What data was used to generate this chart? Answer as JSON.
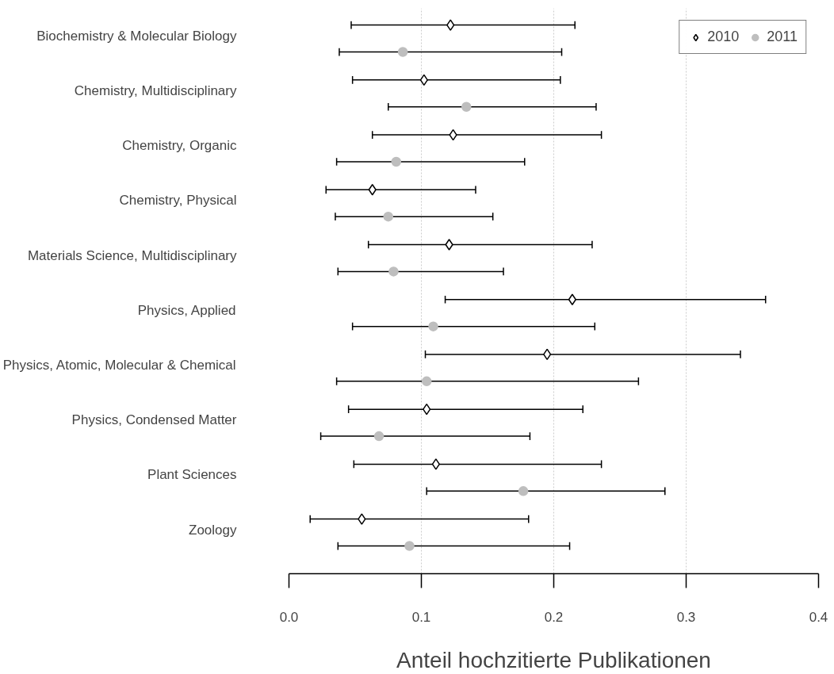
{
  "chart_data": {
    "type": "scatter",
    "orientation": "horizontal",
    "xlabel": "Anteil hochzitierte Publikationen",
    "categories": [
      "Biochemistry & Molecular Biology",
      "Chemistry, Multidisciplinary",
      "Chemistry, Organic",
      "Chemistry, Physical",
      "Materials Science, Multidisciplinary",
      "Physics, Applied",
      "Physics, Atomic, Molecular & Chemical",
      "Physics, Condensed Matter",
      "Plant Sciences",
      "Zoology"
    ],
    "xlim": [
      0,
      0.4
    ],
    "xticks": [
      {
        "value": 0,
        "label": "0.0"
      },
      0.1,
      0.2,
      0.3,
      0.4
    ],
    "grid": "x",
    "legend": "top right",
    "series": [
      {
        "name": "2010",
        "color": "#000000",
        "marker": "diamond",
        "values": [
          0.122,
          0.102,
          0.124,
          0.063,
          0.121,
          0.214,
          0.195,
          0.104,
          0.111,
          0.055
        ],
        "errors": [
          [
            0.047,
            0.216
          ],
          [
            0.048,
            0.205
          ],
          [
            0.063,
            0.236
          ],
          [
            0.028,
            0.141
          ],
          [
            0.06,
            0.229
          ],
          [
            0.118,
            0.36
          ],
          [
            0.103,
            0.341
          ],
          [
            0.045,
            0.222
          ],
          [
            0.049,
            0.236
          ],
          [
            0.016,
            0.181
          ]
        ]
      },
      {
        "name": "2011",
        "color": "#bebebe",
        "marker": "circle",
        "values": [
          0.086,
          0.134,
          0.081,
          0.075,
          0.079,
          0.109,
          0.104,
          0.068,
          0.177,
          0.091
        ],
        "errors": [
          [
            0.038,
            0.206
          ],
          [
            0.075,
            0.232
          ],
          [
            0.036,
            0.178
          ],
          [
            0.035,
            0.154
          ],
          [
            0.037,
            0.162
          ],
          [
            0.048,
            0.231
          ],
          [
            0.036,
            0.264
          ],
          [
            0.024,
            0.182
          ],
          [
            0.104,
            0.284
          ],
          [
            0.037,
            0.212
          ]
        ]
      }
    ]
  }
}
